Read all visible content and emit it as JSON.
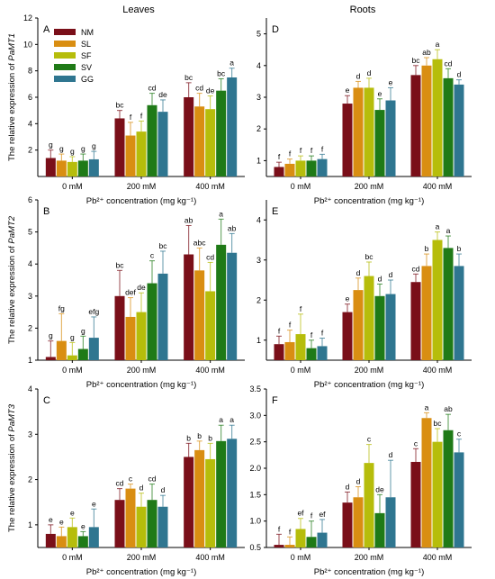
{
  "column_titles": {
    "left": "Leaves",
    "right": "Roots"
  },
  "legend": {
    "entries": [
      "NM",
      "SL",
      "SF",
      "SV",
      "GG"
    ]
  },
  "colors": {
    "NM": "#7a0f19",
    "SL": "#d98e12",
    "SF": "#b6bd0b",
    "SV": "#1f7a17",
    "GG": "#2f7690"
  },
  "chart_data": [
    {
      "type": "bar",
      "panel": "A",
      "column": "Leaves",
      "categories": [
        "0 mM",
        "200 mM",
        "400 mM"
      ],
      "xlabel": "Pb²⁺ concentration (mg kg⁻¹)",
      "ylabel_prefix": "The relative expression of ",
      "ylabel_gene": "PaMT1",
      "ylim": [
        0,
        12
      ],
      "yticks": [
        2,
        4,
        6,
        8,
        10,
        12
      ],
      "series": [
        {
          "name": "NM",
          "values": [
            1.4,
            4.4,
            6.0
          ],
          "errors": [
            0.6,
            0.6,
            1.1
          ],
          "letters": [
            "g",
            "bc",
            "bc"
          ]
        },
        {
          "name": "SL",
          "values": [
            1.2,
            3.1,
            5.3
          ],
          "errors": [
            0.5,
            1.0,
            1.0
          ],
          "letters": [
            "g",
            "f",
            "cd"
          ]
        },
        {
          "name": "SF",
          "values": [
            1.1,
            3.4,
            5.1
          ],
          "errors": [
            0.4,
            0.8,
            1.0
          ],
          "letters": [
            "g",
            "f",
            "de"
          ]
        },
        {
          "name": "SV",
          "values": [
            1.2,
            5.4,
            6.5
          ],
          "errors": [
            0.5,
            0.9,
            0.9
          ],
          "letters": [
            "g",
            "cd",
            "bc"
          ]
        },
        {
          "name": "GG",
          "values": [
            1.3,
            4.9,
            7.5
          ],
          "errors": [
            0.6,
            0.9,
            0.7
          ],
          "letters": [
            "g",
            "de",
            "a"
          ]
        }
      ]
    },
    {
      "type": "bar",
      "panel": "D",
      "column": "Roots",
      "categories": [
        "0 mM",
        "200 mM",
        "400 mM"
      ],
      "xlabel": "Pb²⁺ concentration (mg kg⁻¹)",
      "ylabel_prefix": "",
      "ylabel_gene": "",
      "ylim": [
        0.5,
        5.5
      ],
      "yticks": [
        1,
        2,
        3,
        4,
        5
      ],
      "series": [
        {
          "name": "NM",
          "values": [
            0.8,
            2.8,
            3.7
          ],
          "errors": [
            0.15,
            0.25,
            0.3
          ],
          "letters": [
            "f",
            "e",
            "bc"
          ]
        },
        {
          "name": "SL",
          "values": [
            0.9,
            3.3,
            4.0
          ],
          "errors": [
            0.15,
            0.2,
            0.25
          ],
          "letters": [
            "f",
            "d",
            "ab"
          ]
        },
        {
          "name": "SF",
          "values": [
            1.0,
            3.3,
            4.2
          ],
          "errors": [
            0.15,
            0.3,
            0.3
          ],
          "letters": [
            "f",
            "d",
            "a"
          ]
        },
        {
          "name": "SV",
          "values": [
            1.0,
            2.6,
            3.6
          ],
          "errors": [
            0.15,
            0.35,
            0.3
          ],
          "letters": [
            "f",
            "e",
            "cd"
          ]
        },
        {
          "name": "GG",
          "values": [
            1.05,
            2.9,
            3.4
          ],
          "errors": [
            0.15,
            0.4,
            0.15
          ],
          "letters": [
            "f",
            "e",
            "d"
          ]
        }
      ]
    },
    {
      "type": "bar",
      "panel": "B",
      "column": "Leaves",
      "categories": [
        "0 mM",
        "200 mM",
        "400 mM"
      ],
      "xlabel": "Pb²⁺ concentration (mg kg⁻¹)",
      "ylabel_prefix": "The relative expression of ",
      "ylabel_gene": "PaMT2",
      "ylim": [
        1,
        6
      ],
      "yticks": [
        1,
        2,
        3,
        4,
        5,
        6
      ],
      "series": [
        {
          "name": "NM",
          "values": [
            1.1,
            3.0,
            4.3
          ],
          "errors": [
            0.5,
            0.8,
            0.9
          ],
          "letters": [
            "g",
            "bc",
            "ab"
          ]
        },
        {
          "name": "SL",
          "values": [
            1.6,
            2.35,
            3.8
          ],
          "errors": [
            0.85,
            0.6,
            0.7
          ],
          "letters": [
            "fg",
            "def",
            "abc"
          ]
        },
        {
          "name": "SF",
          "values": [
            1.15,
            2.5,
            3.15
          ],
          "errors": [
            0.4,
            0.6,
            0.9
          ],
          "letters": [
            "g",
            "de",
            "cd"
          ]
        },
        {
          "name": "SV",
          "values": [
            1.35,
            3.4,
            4.6
          ],
          "errors": [
            0.4,
            0.7,
            0.8
          ],
          "letters": [
            "g",
            "c",
            "a"
          ]
        },
        {
          "name": "GG",
          "values": [
            1.7,
            3.7,
            4.35
          ],
          "errors": [
            0.65,
            0.7,
            0.6
          ],
          "letters": [
            "efg",
            "bc",
            "ab"
          ]
        }
      ]
    },
    {
      "type": "bar",
      "panel": "E",
      "column": "Roots",
      "categories": [
        "0 mM",
        "200 mM",
        "400 mM"
      ],
      "xlabel": "Pb²⁺ concentration (mg kg⁻¹)",
      "ylabel_prefix": "",
      "ylabel_gene": "",
      "ylim": [
        0.5,
        4.5
      ],
      "yticks": [
        1,
        2,
        3,
        4
      ],
      "series": [
        {
          "name": "NM",
          "values": [
            0.9,
            1.7,
            2.45
          ],
          "errors": [
            0.2,
            0.2,
            0.2
          ],
          "letters": [
            "f",
            "e",
            "cd"
          ]
        },
        {
          "name": "SL",
          "values": [
            0.95,
            2.25,
            2.85
          ],
          "errors": [
            0.3,
            0.3,
            0.3
          ],
          "letters": [
            "f",
            "d",
            "b"
          ]
        },
        {
          "name": "SF",
          "values": [
            1.15,
            2.6,
            3.5
          ],
          "errors": [
            0.5,
            0.35,
            0.2
          ],
          "letters": [
            "f",
            "bc",
            "a"
          ]
        },
        {
          "name": "SV",
          "values": [
            0.8,
            2.1,
            3.3
          ],
          "errors": [
            0.2,
            0.3,
            0.3
          ],
          "letters": [
            "f",
            "d",
            "a"
          ]
        },
        {
          "name": "GG",
          "values": [
            0.85,
            2.15,
            2.85
          ],
          "errors": [
            0.2,
            0.35,
            0.3
          ],
          "letters": [
            "f",
            "d",
            "b"
          ]
        }
      ]
    },
    {
      "type": "bar",
      "panel": "C",
      "column": "Leaves",
      "categories": [
        "0 mM",
        "200 mM",
        "400 mM"
      ],
      "xlabel": "Pb²⁺ concentration (mg kg⁻¹)",
      "ylabel_prefix": "The relative expression of ",
      "ylabel_gene": "PaMT3",
      "ylim": [
        0.5,
        4
      ],
      "yticks": [
        1,
        2,
        3,
        4
      ],
      "series": [
        {
          "name": "NM",
          "values": [
            0.8,
            1.55,
            2.5
          ],
          "errors": [
            0.2,
            0.25,
            0.3
          ],
          "letters": [
            "e",
            "cd",
            "b"
          ]
        },
        {
          "name": "SL",
          "values": [
            0.75,
            1.8,
            2.65
          ],
          "errors": [
            0.2,
            0.1,
            0.2
          ],
          "letters": [
            "e",
            "c",
            "b"
          ]
        },
        {
          "name": "SF",
          "values": [
            0.95,
            1.4,
            2.45
          ],
          "errors": [
            0.2,
            0.3,
            0.35
          ],
          "letters": [
            "e",
            "d",
            "b"
          ]
        },
        {
          "name": "SV",
          "values": [
            0.75,
            1.55,
            2.85
          ],
          "errors": [
            0.1,
            0.35,
            0.35
          ],
          "letters": [
            "e",
            "cd",
            "a"
          ]
        },
        {
          "name": "GG",
          "values": [
            0.95,
            1.4,
            2.9
          ],
          "errors": [
            0.4,
            0.25,
            0.3
          ],
          "letters": [
            "e",
            "d",
            "a"
          ]
        }
      ]
    },
    {
      "type": "bar",
      "panel": "F",
      "column": "Roots",
      "categories": [
        "0 mM",
        "200 mM",
        "400 mM"
      ],
      "xlabel": "Pb²⁺ concentration (mg kg⁻¹)",
      "ylabel_prefix": "",
      "ylabel_gene": "",
      "ylim": [
        0.5,
        3.5
      ],
      "yticks": [
        0.5,
        1.0,
        1.5,
        2.0,
        2.5,
        3.0,
        3.5
      ],
      "series": [
        {
          "name": "NM",
          "values": [
            0.55,
            1.35,
            2.12
          ],
          "errors": [
            0.2,
            0.2,
            0.25
          ],
          "letters": [
            "f",
            "d",
            "c"
          ]
        },
        {
          "name": "SL",
          "values": [
            0.55,
            1.45,
            2.95
          ],
          "errors": [
            0.15,
            0.2,
            0.1
          ],
          "letters": [
            "f",
            "d",
            "a"
          ]
        },
        {
          "name": "SF",
          "values": [
            0.85,
            2.1,
            2.5
          ],
          "errors": [
            0.2,
            0.35,
            0.25
          ],
          "letters": [
            "ef",
            "c",
            "bc"
          ]
        },
        {
          "name": "SV",
          "values": [
            0.7,
            1.15,
            2.72
          ],
          "errors": [
            0.3,
            0.35,
            0.3
          ],
          "letters": [
            "f",
            "de",
            "ab"
          ]
        },
        {
          "name": "GG",
          "values": [
            0.78,
            1.45,
            2.3
          ],
          "errors": [
            0.25,
            0.7,
            0.25
          ],
          "letters": [
            "ef",
            "d",
            "c"
          ]
        }
      ]
    }
  ]
}
